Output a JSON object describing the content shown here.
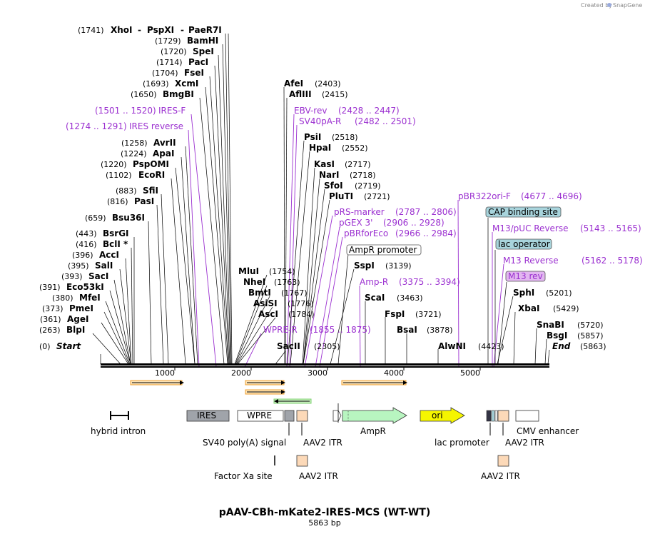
{
  "credit": {
    "prefix": "Created by",
    "brand": "SnapGene"
  },
  "title": "pAAV-CBh-mKate2-IRES-MCS (WT-WT)",
  "subtitle": "5863 bp",
  "sites": [
    {
      "pos": "(1741)",
      "name": "XhoI",
      "extra1": "PspXI",
      "extra2": "PaeR7I"
    },
    {
      "pos": "(1729)",
      "name": "BamHI"
    },
    {
      "pos": "(1720)",
      "name": "SpeI"
    },
    {
      "pos": "(1714)",
      "name": "PacI"
    },
    {
      "pos": "(1704)",
      "name": "FseI"
    },
    {
      "pos": "(1693)",
      "name": "XcmI"
    },
    {
      "pos": "(1650)",
      "name": "BmgBI"
    },
    {
      "pos": "(1501 .. 1520)",
      "name": "IRES-F",
      "primer": true
    },
    {
      "pos": "(1274 .. 1291)",
      "name": "IRES reverse",
      "primer": true
    },
    {
      "pos": "(1258)",
      "name": "AvrII"
    },
    {
      "pos": "(1224)",
      "name": "ApaI"
    },
    {
      "pos": "(1220)",
      "name": "PspOMI"
    },
    {
      "pos": "(1102)",
      "name": "EcoRI"
    },
    {
      "pos": "(883)",
      "name": "SfiI"
    },
    {
      "pos": "(816)",
      "name": "PasI"
    },
    {
      "pos": "(659)",
      "name": "Bsu36I"
    },
    {
      "pos": "(443)",
      "name": "BsrGI"
    },
    {
      "pos": "(416)",
      "name": "BclI *"
    },
    {
      "pos": "(396)",
      "name": "AccI"
    },
    {
      "pos": "(395)",
      "name": "SalI"
    },
    {
      "pos": "(393)",
      "name": "SacI"
    },
    {
      "pos": "(391)",
      "name": "Eco53kI"
    },
    {
      "pos": "(380)",
      "name": "MfeI"
    },
    {
      "pos": "(373)",
      "name": "PmeI"
    },
    {
      "pos": "(361)",
      "name": "AgeI"
    },
    {
      "pos": "(263)",
      "name": "BlpI"
    },
    {
      "pos": "(0)",
      "name": "Start"
    }
  ],
  "mid_sites": [
    {
      "name": "AfeI",
      "pos": "(2403)"
    },
    {
      "name": "AflIII",
      "pos": "(2415)"
    },
    {
      "name": "EBV-rev",
      "pos": "(2428 .. 2447)",
      "primer": true
    },
    {
      "name": "SV40pA-R",
      "pos": "(2482 .. 2501)",
      "primer": true
    },
    {
      "name": "PsiI",
      "pos": "(2518)"
    },
    {
      "name": "HpaI",
      "pos": "(2552)"
    },
    {
      "name": "KasI",
      "pos": "(2717)"
    },
    {
      "name": "NarI",
      "pos": "(2718)"
    },
    {
      "name": "SfoI",
      "pos": "(2719)"
    },
    {
      "name": "PluTI",
      "pos": "(2721)"
    },
    {
      "name": "pRS-marker",
      "pos": "(2787 .. 2806)",
      "primer": true
    },
    {
      "name": "pGEX 3'",
      "pos": "(2906 .. 2928)",
      "primer": true
    },
    {
      "name": "pBRforEco",
      "pos": "(2966 .. 2984)",
      "primer": true
    },
    {
      "name": "AmpR promoter",
      "boxed": true
    },
    {
      "name": "SspI",
      "pos": "(3139)"
    },
    {
      "name": "Amp-R",
      "pos": "(3375 .. 3394)",
      "primer": true
    },
    {
      "name": "ScaI",
      "pos": "(3463)"
    },
    {
      "name": "FspI",
      "pos": "(3721)"
    },
    {
      "name": "BsaI",
      "pos": "(3878)"
    },
    {
      "name": "AlwNI",
      "pos": "(4423)"
    },
    {
      "name": "MluI",
      "pos": "(1754)"
    },
    {
      "name": "NheI",
      "pos": "(1763)"
    },
    {
      "name": "BmtI",
      "pos": "(1767)"
    },
    {
      "name": "AsiSI",
      "pos": "(1776)"
    },
    {
      "name": "AscI",
      "pos": "(1784)"
    },
    {
      "name": "WPRE-R",
      "pos": "(1855 .. 1875)",
      "primer": true
    },
    {
      "name": "SacII",
      "pos": "(2305)"
    }
  ],
  "right_sites": [
    {
      "name": "pBR322ori-F",
      "pos": "(4677 .. 4696)",
      "primer": true
    },
    {
      "name": "CAP binding site",
      "boxed": true
    },
    {
      "name": "M13/pUC Reverse",
      "pos": "(5143 .. 5165)",
      "primer": true
    },
    {
      "name": "lac operator",
      "boxed": true
    },
    {
      "name": "M13 Reverse",
      "pos": "(5162 .. 5178)",
      "primer": true
    },
    {
      "name": "M13 rev",
      "boxed": true,
      "primer": true
    },
    {
      "name": "SphI",
      "pos": "(5201)"
    },
    {
      "name": "XbaI",
      "pos": "(5429)"
    },
    {
      "name": "SnaBI",
      "pos": "(5720)"
    },
    {
      "name": "BsgI",
      "pos": "(5857)"
    },
    {
      "name": "End",
      "pos": "(5863)"
    }
  ],
  "ticks": [
    "1000",
    "2000",
    "3000",
    "4000",
    "5000"
  ],
  "features": {
    "ires": "IRES",
    "wpre": "WPRE",
    "ori": "ori",
    "hybrid_intron": "hybrid intron",
    "sv40": "SV40 poly(A) signal",
    "aav2_itr": "AAV2 ITR",
    "ampr": "AmpR",
    "lac_promoter": "lac promoter",
    "cmv": "CMV enhancer",
    "factor_xa": "Factor Xa site"
  },
  "colors": {
    "primer": "#9b30d0",
    "orf_arrow": "#f0a030",
    "ires_box": "#a0a4aa",
    "itr_box": "#fcd9b8",
    "ori_box": "#f5f500",
    "ampr_arrow": "#b8f5c0",
    "cap_box": "#a8d4dc",
    "m13rev_box": "#e2b6f0"
  }
}
